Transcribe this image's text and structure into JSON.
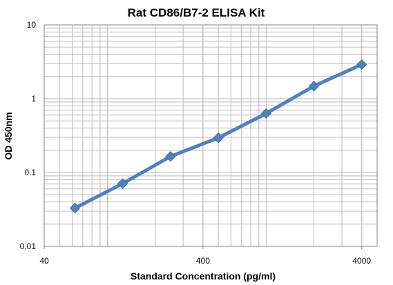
{
  "chart_data": {
    "type": "line",
    "title": "Rat CD86/B7-2 ELISA Kit",
    "xlabel": "Standard Concentration (pg/ml)",
    "ylabel": "OD 450nm",
    "x_scale": "log",
    "y_scale": "log",
    "xlim": [
      40,
      5000
    ],
    "ylim": [
      0.01,
      10
    ],
    "x_ticks": [
      40,
      400,
      4000
    ],
    "x_tick_labels": [
      "40",
      "400",
      "4000"
    ],
    "y_ticks": [
      0.01,
      0.1,
      1,
      10
    ],
    "y_tick_labels": [
      "0.01",
      "0.1",
      "1",
      "10"
    ],
    "grid": true,
    "legend": false,
    "series": [
      {
        "color": "#4F81BD",
        "marker": "diamond",
        "x": [
          62.5,
          125,
          250,
          500,
          1000,
          2000,
          4000
        ],
        "y": [
          0.033,
          0.071,
          0.165,
          0.295,
          0.63,
          1.48,
          2.9
        ]
      }
    ]
  }
}
